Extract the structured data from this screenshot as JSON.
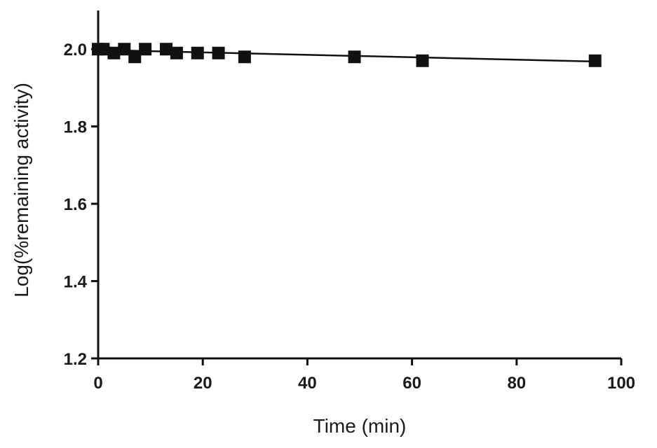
{
  "chart_data": {
    "type": "scatter",
    "title": "",
    "xlabel": "Time (min)",
    "ylabel": "Log(%remaining activity)",
    "xlim": [
      0,
      100
    ],
    "ylim": [
      1.2,
      2.1
    ],
    "x_ticks": [
      0,
      20,
      40,
      60,
      80,
      100
    ],
    "x_tick_labels": [
      "0",
      "20",
      "40",
      "60",
      "80",
      "100"
    ],
    "y_ticks": [
      1.2,
      1.4,
      1.6,
      1.8,
      2.0
    ],
    "y_tick_labels": [
      "1.2",
      "1.4",
      "1.6",
      "1.8",
      "2.0"
    ],
    "grid": false,
    "marker": "square",
    "color": "#111111",
    "series": [
      {
        "x": [
          0,
          1,
          3,
          5,
          7,
          9,
          13,
          15,
          19,
          23,
          28,
          49,
          62,
          95
        ],
        "y": [
          2.0,
          2.0,
          1.99,
          2.0,
          1.98,
          2.0,
          2.0,
          1.99,
          1.99,
          1.99,
          1.98,
          1.98,
          1.97,
          1.97
        ]
      }
    ],
    "fit_line": {
      "x": [
        0,
        95
      ],
      "y": [
        1.998,
        1.968
      ]
    }
  }
}
